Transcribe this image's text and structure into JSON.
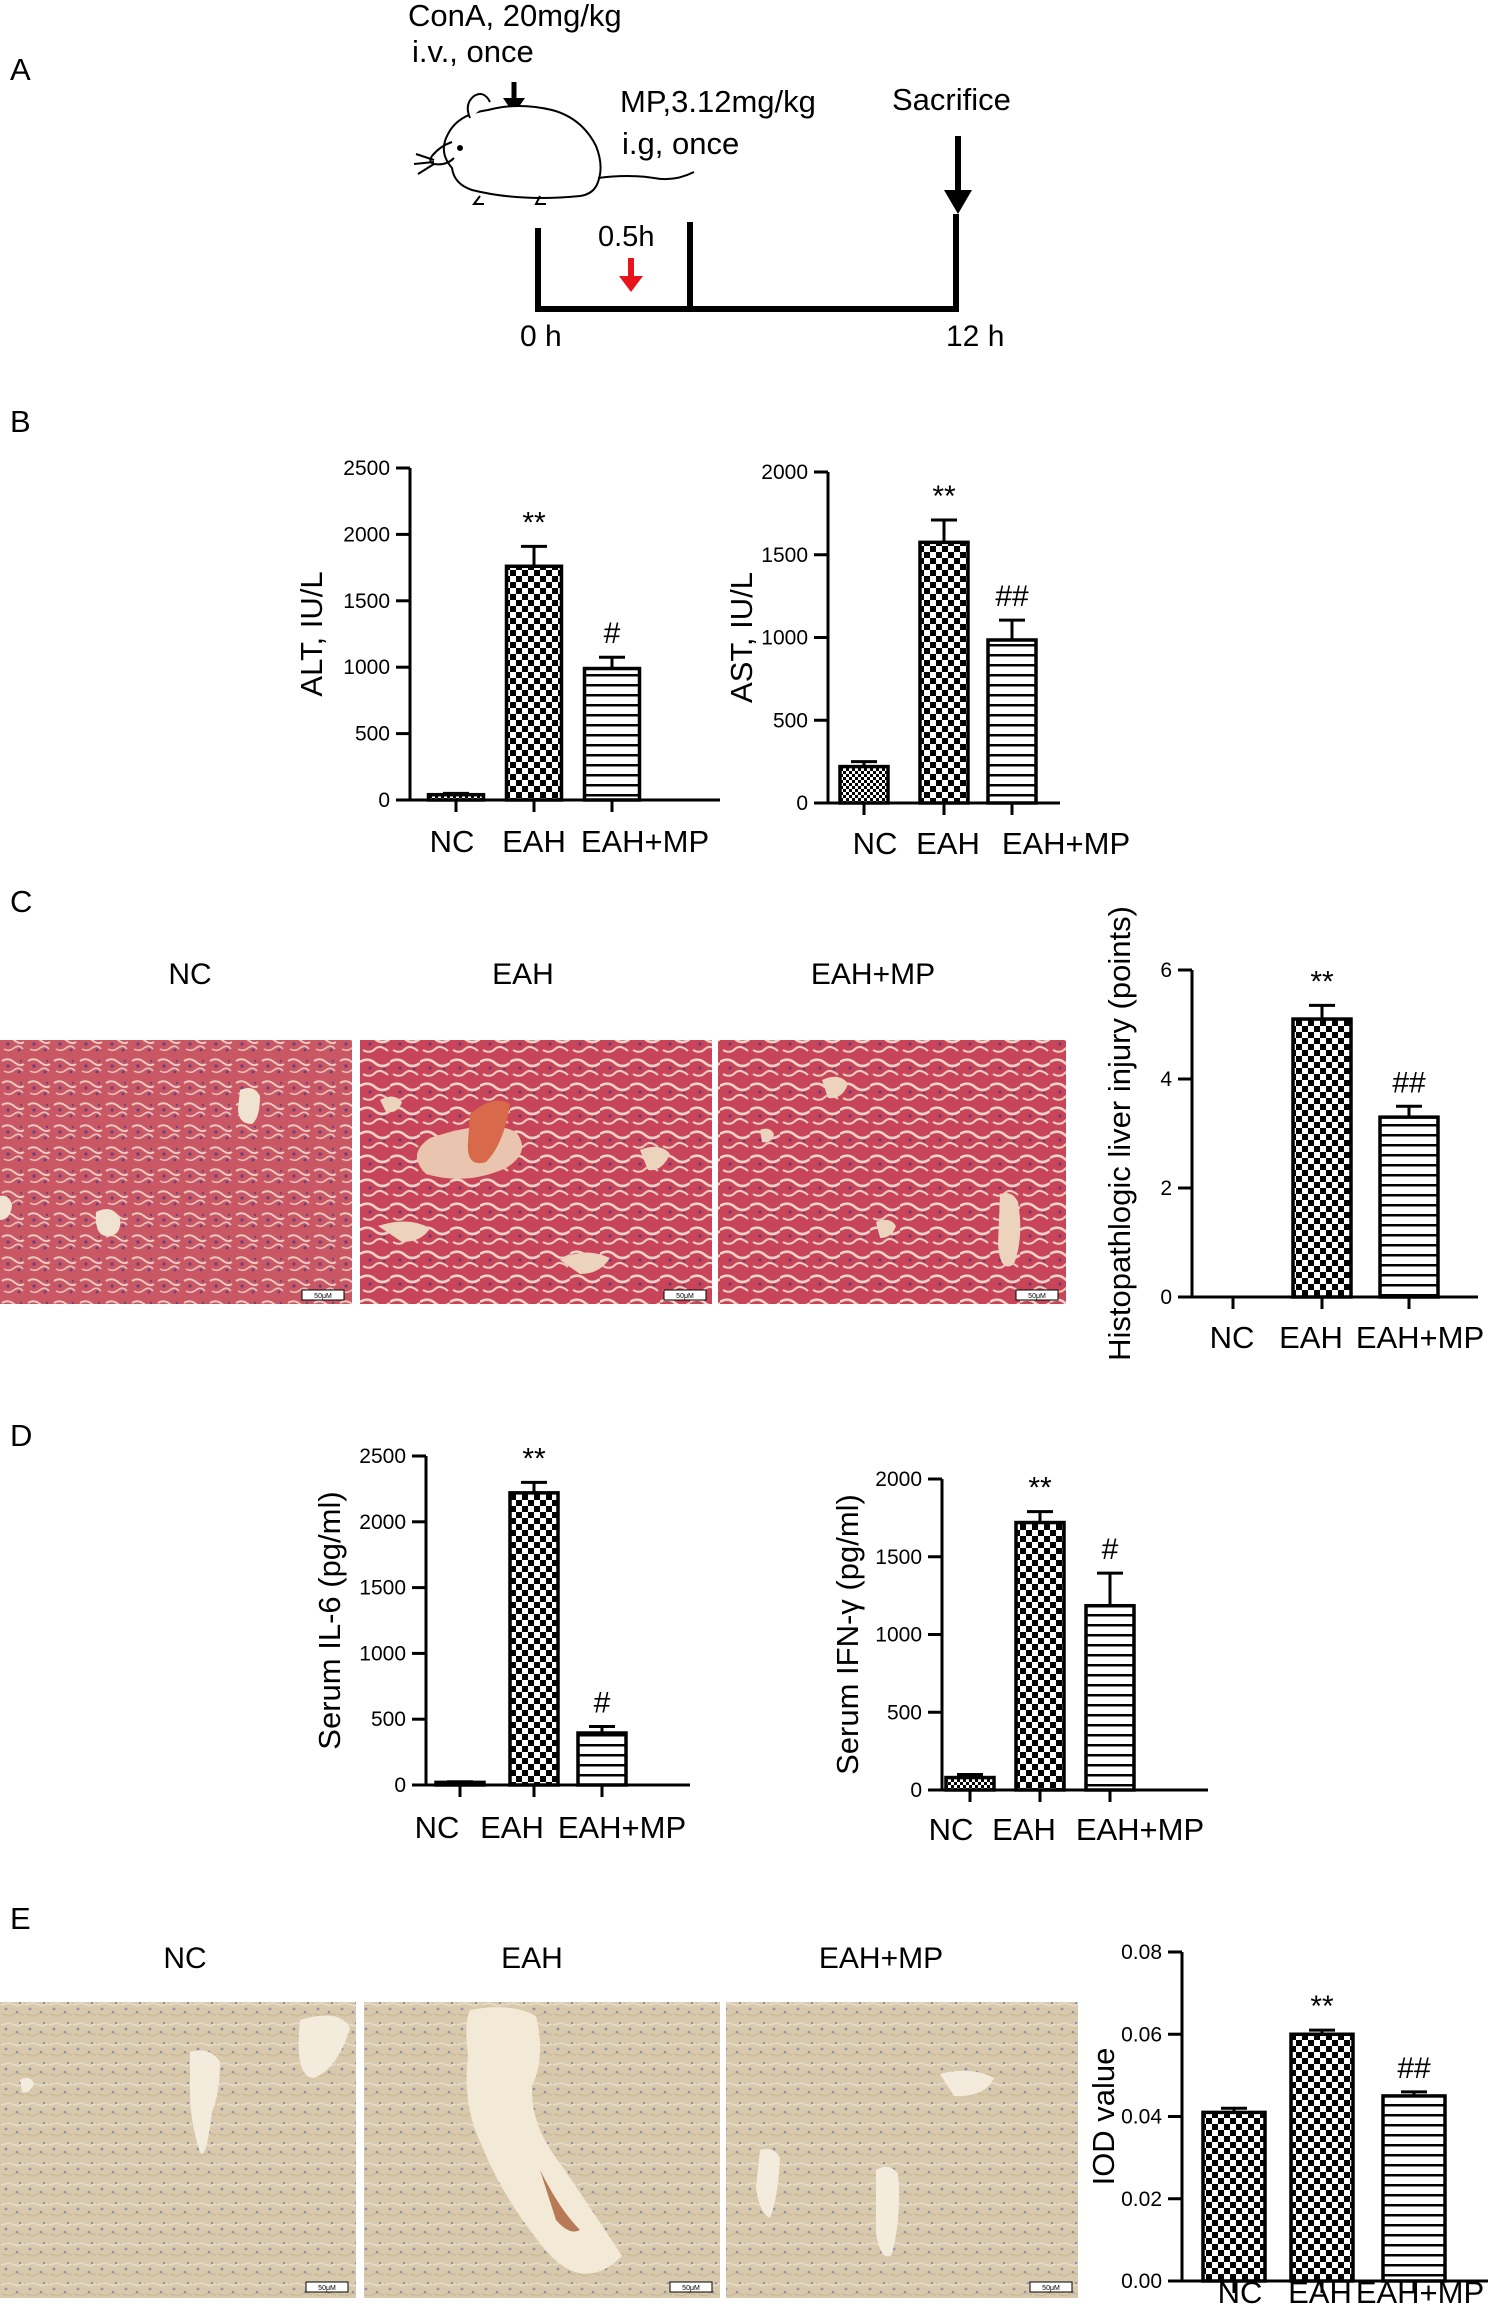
{
  "panels": {
    "a": "A",
    "b": "B",
    "c": "C",
    "d": "D",
    "e": "E"
  },
  "timeline": {
    "cona_line1": "ConA, 20mg/kg",
    "cona_line2": "i.v., once",
    "mp_line1": "MP,3.12mg/kg",
    "mp_line2": "i.g, once",
    "sacrifice": "Sacrifice",
    "half_hour": "0.5h",
    "t0": "0 h",
    "t12": "12 h"
  },
  "headers": {
    "c": [
      "NC",
      "EAH",
      "EAH+MP"
    ],
    "e": [
      "NC",
      "EAH",
      "EAH+MP"
    ]
  },
  "scale_bar": "50μM",
  "colors": {
    "arrow_red": "#e8141b",
    "tissue_he": "#c8505a",
    "tissue_ihc": "#d6c7a9"
  },
  "chart_data": [
    {
      "id": "alt",
      "type": "bar",
      "categories": [
        "NC",
        "EAH",
        "EAH+MP"
      ],
      "values": [
        40,
        1760,
        990
      ],
      "errors": [
        10,
        150,
        85
      ],
      "annotations": [
        "",
        "**",
        "#"
      ],
      "patterns": [
        "fine",
        "check",
        "hline"
      ],
      "ylabel": "ALT, IU/L",
      "ylim": [
        0,
        2500
      ],
      "yticks": [
        0,
        500,
        1000,
        1500,
        2000,
        2500
      ]
    },
    {
      "id": "ast",
      "type": "bar",
      "categories": [
        "NC",
        "EAH",
        "EAH+MP"
      ],
      "values": [
        220,
        1575,
        985
      ],
      "errors": [
        30,
        135,
        120
      ],
      "annotations": [
        "",
        "**",
        "##"
      ],
      "patterns": [
        "fine",
        "check",
        "hline"
      ],
      "ylabel": "AST, IU/L",
      "ylim": [
        0,
        2000
      ],
      "yticks": [
        0,
        500,
        1000,
        1500,
        2000
      ]
    },
    {
      "id": "histo",
      "type": "bar",
      "categories": [
        "NC",
        "EAH",
        "EAH+MP"
      ],
      "values": [
        0,
        5.1,
        3.3
      ],
      "errors": [
        0,
        0.25,
        0.2
      ],
      "annotations": [
        "",
        "**",
        "##"
      ],
      "patterns": [
        "none",
        "check",
        "hline"
      ],
      "ylabel": "Histopathlogic liver injury (points)",
      "ylim": [
        0,
        6
      ],
      "yticks": [
        0,
        2,
        4,
        6
      ]
    },
    {
      "id": "il6",
      "type": "bar",
      "categories": [
        "NC",
        "EAH",
        "EAH+MP"
      ],
      "values": [
        20,
        2220,
        395
      ],
      "errors": [
        5,
        80,
        50
      ],
      "annotations": [
        "",
        "**",
        "#"
      ],
      "patterns": [
        "fine",
        "check",
        "hline"
      ],
      "ylabel": "Serum IL-6 (pg/ml)",
      "ylim": [
        0,
        2500
      ],
      "yticks": [
        0,
        500,
        1000,
        1500,
        2000,
        2500
      ]
    },
    {
      "id": "ifn",
      "type": "bar",
      "categories": [
        "NC",
        "EAH",
        "EAH+MP"
      ],
      "values": [
        80,
        1720,
        1185
      ],
      "errors": [
        20,
        70,
        210
      ],
      "annotations": [
        "",
        "**",
        "#"
      ],
      "patterns": [
        "fine",
        "check",
        "hline"
      ],
      "ylabel": "Serum IFN-γ (pg/ml)",
      "ylim": [
        0,
        2000
      ],
      "yticks": [
        0,
        500,
        1000,
        1500,
        2000
      ]
    },
    {
      "id": "iod",
      "type": "bar",
      "categories": [
        "NC",
        "EAH",
        "EAH+MP"
      ],
      "values": [
        0.041,
        0.06,
        0.045
      ],
      "errors": [
        0.001,
        0.001,
        0.001
      ],
      "annotations": [
        "",
        "**",
        "##"
      ],
      "patterns": [
        "check",
        "check",
        "hline"
      ],
      "ylabel": "IOD value",
      "ylim": [
        0,
        0.08
      ],
      "yticks": [
        "0.00",
        "0.02",
        "0.04",
        "0.06",
        "0.08"
      ]
    }
  ]
}
